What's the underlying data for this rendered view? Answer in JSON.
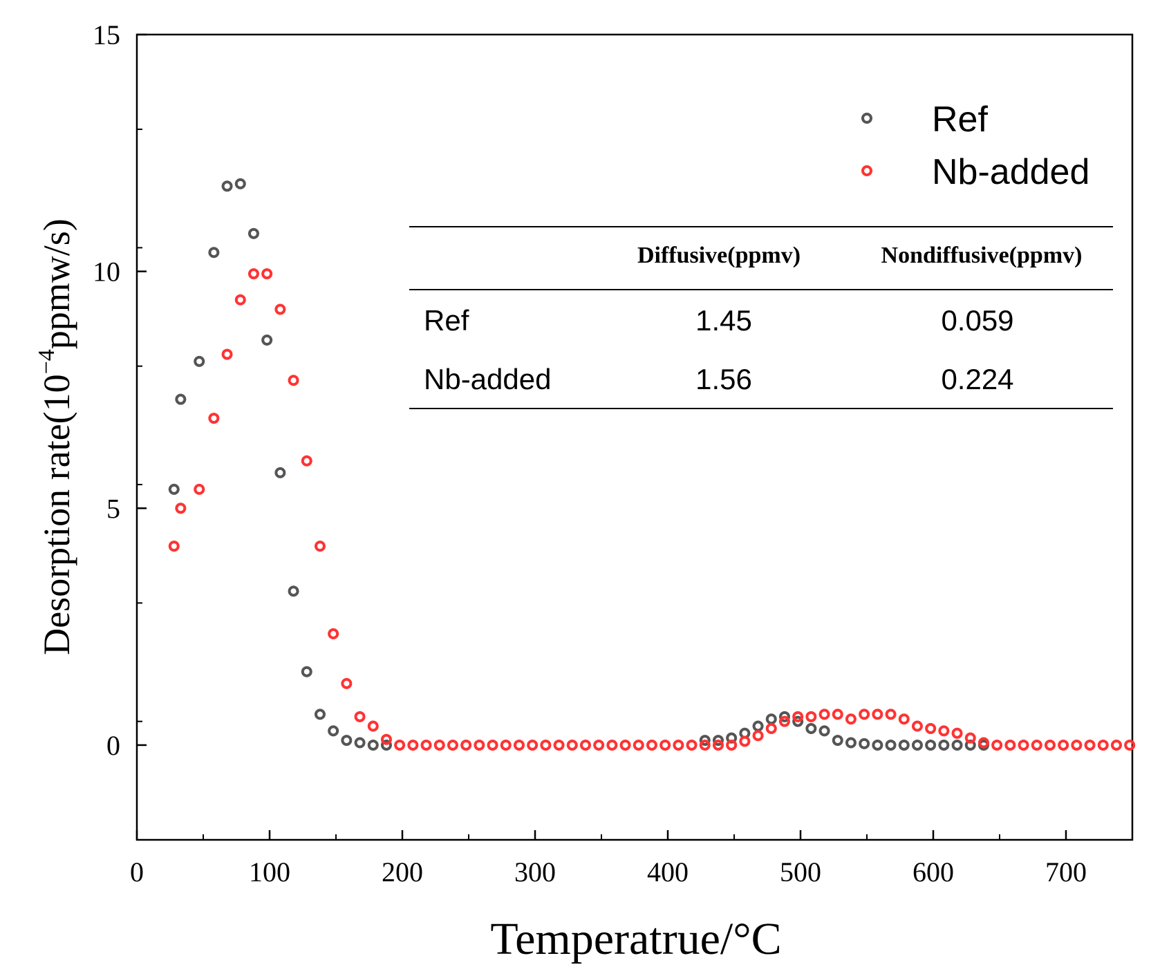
{
  "chart_data": {
    "type": "scatter",
    "xlabel": "Temperatrue/°C",
    "ylabel_prefix": "Desorption rate(10",
    "ylabel_exponent": "−4",
    "ylabel_suffix": "ppmw/s)",
    "xlim": [
      0,
      750
    ],
    "ylim": [
      -2,
      15
    ],
    "xticks": [
      0,
      100,
      200,
      300,
      400,
      500,
      600,
      700
    ],
    "yticks": [
      0,
      5,
      10,
      15
    ],
    "x_minor_step": 50,
    "y_minor_step": 2.5,
    "grid": false,
    "legend_position": "top-right",
    "series": [
      {
        "name": "Ref",
        "color": "#555555",
        "x": [
          28,
          33,
          47,
          58,
          68,
          78,
          88,
          98,
          108,
          118,
          128,
          138,
          148,
          158,
          168,
          178,
          188,
          428,
          438,
          448,
          458,
          468,
          478,
          488,
          498,
          508,
          518,
          528,
          538,
          548,
          558,
          568,
          578,
          588,
          598,
          608,
          618,
          628,
          638
        ],
        "y": [
          5.4,
          7.3,
          8.1,
          10.4,
          11.8,
          11.85,
          10.8,
          8.55,
          5.75,
          3.25,
          1.55,
          0.65,
          0.3,
          0.1,
          0.05,
          0.0,
          0.0,
          0.1,
          0.1,
          0.15,
          0.25,
          0.4,
          0.55,
          0.6,
          0.5,
          0.35,
          0.3,
          0.1,
          0.05,
          0.03,
          0.0,
          0.0,
          0.0,
          0.0,
          0.0,
          0.0,
          0.0,
          0.0,
          0.0
        ]
      },
      {
        "name": "Nb-added",
        "color": "#ff3333",
        "x": [
          28,
          33,
          47,
          58,
          68,
          78,
          88,
          98,
          108,
          118,
          128,
          138,
          148,
          158,
          168,
          178,
          188,
          198,
          208,
          218,
          228,
          238,
          248,
          258,
          268,
          278,
          288,
          298,
          308,
          318,
          328,
          338,
          348,
          358,
          368,
          378,
          388,
          398,
          408,
          418,
          428,
          438,
          448,
          458,
          468,
          478,
          488,
          498,
          508,
          518,
          528,
          538,
          548,
          558,
          568,
          578,
          588,
          598,
          608,
          618,
          628,
          638,
          648,
          658,
          668,
          678,
          688,
          698,
          708,
          718,
          728,
          738,
          748
        ],
        "y": [
          4.2,
          5.0,
          5.4,
          6.9,
          8.25,
          9.4,
          9.95,
          9.95,
          9.2,
          7.7,
          6.0,
          4.2,
          2.35,
          1.3,
          0.6,
          0.4,
          0.12,
          0.0,
          0.0,
          0.0,
          0.0,
          0.0,
          0.0,
          0.0,
          0.0,
          0.0,
          0.0,
          0.0,
          0.0,
          0.0,
          0.0,
          0.0,
          0.0,
          0.0,
          0.0,
          0.0,
          0.0,
          0.0,
          0.0,
          0.0,
          0.0,
          0.0,
          0.0,
          0.08,
          0.2,
          0.35,
          0.5,
          0.6,
          0.6,
          0.65,
          0.65,
          0.55,
          0.65,
          0.65,
          0.65,
          0.55,
          0.4,
          0.35,
          0.3,
          0.25,
          0.15,
          0.05,
          0.0,
          0.0,
          0.0,
          0.0,
          0.0,
          0.0,
          0.0,
          0.0,
          0.0,
          0.0,
          0.0
        ]
      }
    ],
    "inset_table": {
      "headers": [
        "",
        "Diffusive(ppmv)",
        "Nondiffusive(ppmv)"
      ],
      "rows": [
        [
          "Ref",
          "1.45",
          "0.059"
        ],
        [
          "Nb-added",
          "1.56",
          "0.224"
        ]
      ]
    }
  }
}
